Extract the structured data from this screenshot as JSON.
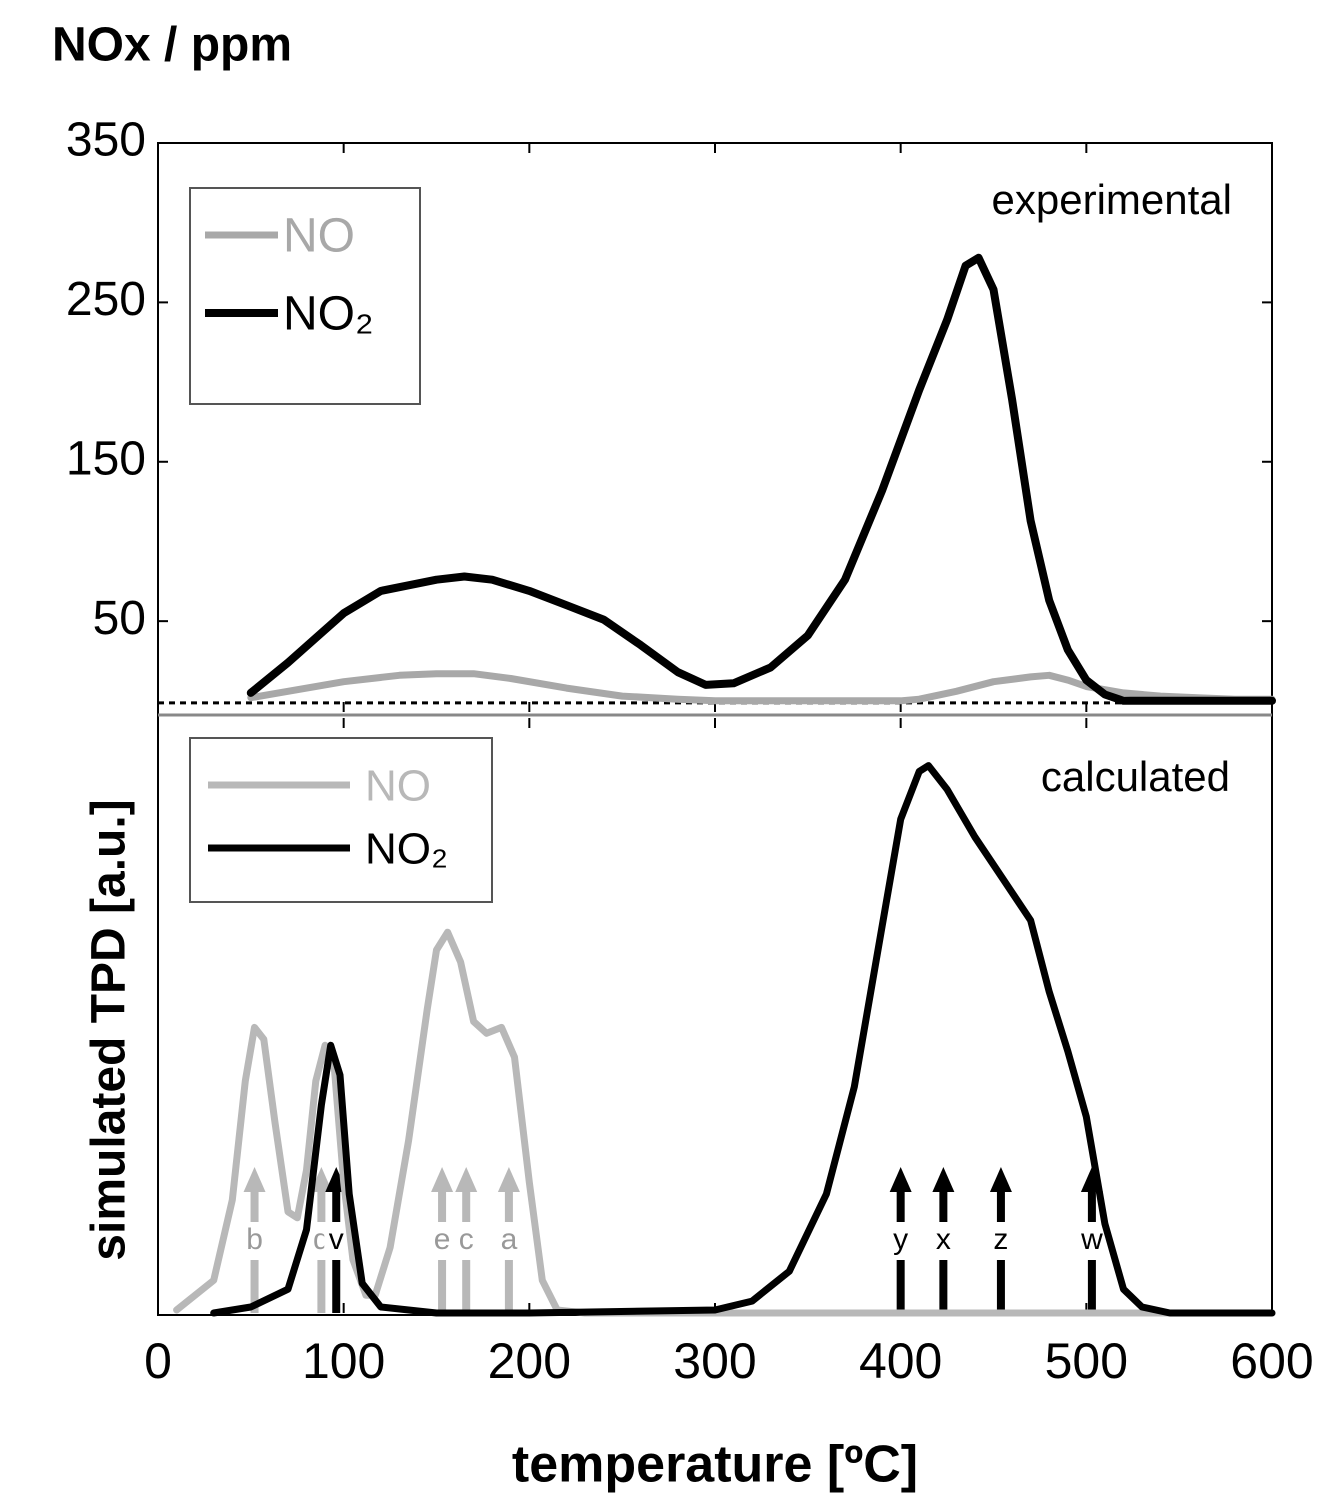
{
  "chart_data": [
    {
      "type": "line",
      "ylabel": "NOx / ppm",
      "annotation": "experimental",
      "xlim": [
        0,
        600
      ],
      "ylim": [
        -7,
        350
      ],
      "yticks": [
        50,
        150,
        250,
        350
      ],
      "zero_line": 0,
      "series": [
        {
          "name": "NO",
          "color": "#a8a8a8",
          "x": [
            50,
            70,
            100,
            130,
            150,
            170,
            190,
            220,
            250,
            280,
            300,
            400,
            410,
            430,
            450,
            470,
            480,
            490,
            500,
            520,
            540,
            560,
            580,
            600
          ],
          "values": [
            2,
            6,
            12,
            16,
            17,
            17,
            14,
            8,
            3,
            1,
            0,
            0,
            1,
            6,
            12,
            15,
            16,
            13,
            9,
            5,
            3,
            2,
            1,
            1
          ]
        },
        {
          "name": "NO₂",
          "color": "#000000",
          "x": [
            50,
            70,
            100,
            120,
            150,
            165,
            180,
            200,
            220,
            240,
            260,
            280,
            295,
            310,
            330,
            350,
            370,
            390,
            410,
            425,
            435,
            442,
            450,
            460,
            470,
            480,
            490,
            500,
            510,
            520,
            540,
            560,
            580,
            600
          ],
          "values": [
            5,
            24,
            55,
            69,
            76,
            78,
            76,
            69,
            60,
            51,
            35,
            18,
            10,
            11,
            21,
            41,
            76,
            132,
            195,
            239,
            273,
            278,
            258,
            189,
            113,
            63,
            32,
            13,
            4,
            0,
            0,
            0,
            0,
            0
          ]
        }
      ]
    },
    {
      "type": "line",
      "ylabel": "simulated TPD [a.u.]",
      "xlabel": "temperature [ºC]",
      "annotation": "calculated",
      "xlim": [
        0,
        600
      ],
      "ylim": [
        0,
        100
      ],
      "xticks": [
        0,
        100,
        200,
        300,
        400,
        500,
        600
      ],
      "series": [
        {
          "name": "NO",
          "color": "#b8b8b8",
          "x": [
            10,
            30,
            40,
            47,
            52,
            57,
            63,
            70,
            75,
            80,
            85,
            90,
            95,
            100,
            105,
            112,
            117,
            125,
            135,
            145,
            150,
            156,
            163,
            170,
            177,
            185,
            192,
            200,
            207,
            215,
            230,
            600
          ],
          "values": [
            0.5,
            5.5,
            19,
            39,
            48,
            46,
            32,
            17,
            16,
            24,
            39,
            45,
            41,
            22,
            9,
            3,
            3,
            11,
            29,
            51,
            61,
            64,
            59,
            49,
            47,
            48,
            43,
            22,
            5.5,
            0.5,
            0,
            0
          ]
        },
        {
          "name": "NO₂",
          "color": "#000000",
          "x": [
            30,
            50,
            70,
            80,
            88,
            93,
            98,
            103,
            110,
            120,
            150,
            200,
            300,
            320,
            340,
            360,
            375,
            390,
            400,
            410,
            415,
            425,
            440,
            455,
            470,
            480,
            490,
            500,
            510,
            520,
            530,
            545,
            600
          ],
          "values": [
            0,
            1,
            4,
            14,
            35,
            45,
            40,
            20,
            5,
            1,
            0,
            0,
            0.5,
            2,
            7,
            20,
            38,
            65,
            83,
            91,
            92,
            88,
            80,
            73,
            66,
            54,
            44,
            33,
            15,
            4,
            1,
            0,
            0
          ]
        }
      ],
      "arrows": [
        {
          "label": "b",
          "x": 52,
          "color": "#b8b8b8"
        },
        {
          "label": "d",
          "x": 88,
          "color": "#b8b8b8"
        },
        {
          "label": "v",
          "x": 96,
          "color": "#000000"
        },
        {
          "label": "e",
          "x": 153,
          "color": "#b8b8b8"
        },
        {
          "label": "c",
          "x": 166,
          "color": "#b8b8b8"
        },
        {
          "label": "a",
          "x": 189,
          "color": "#b8b8b8"
        },
        {
          "label": "y",
          "x": 400,
          "color": "#000000"
        },
        {
          "label": "x",
          "x": 423,
          "color": "#000000"
        },
        {
          "label": "z",
          "x": 454,
          "color": "#000000"
        },
        {
          "label": "w",
          "x": 503,
          "color": "#000000"
        }
      ]
    }
  ]
}
